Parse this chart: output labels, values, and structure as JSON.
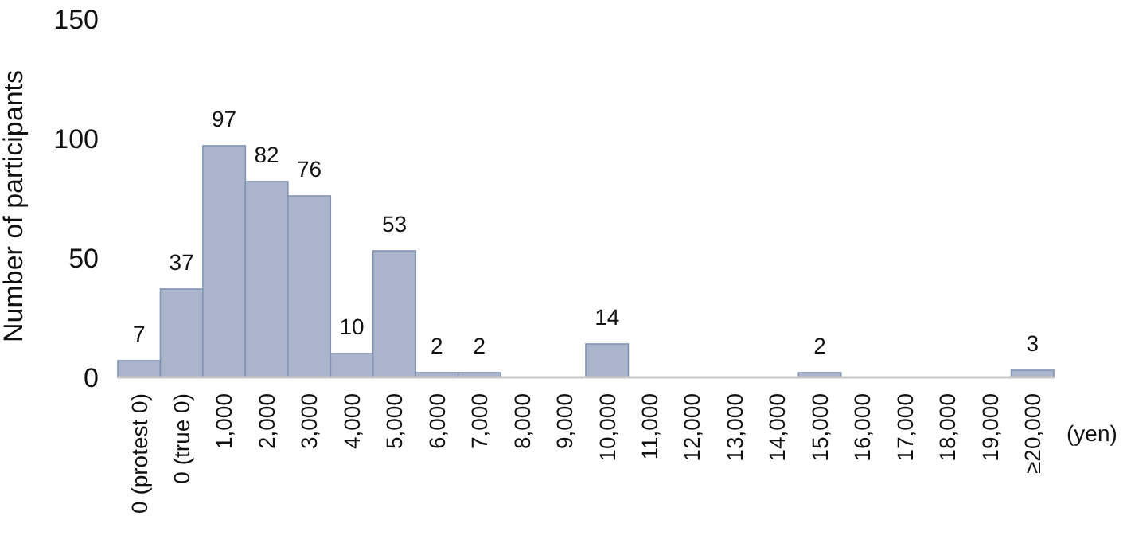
{
  "chart_data": {
    "type": "bar",
    "ylabel": "Number of participants",
    "categories": [
      "0 (protest 0)",
      "0 (true 0)",
      "1,000",
      "2,000",
      "3,000",
      "4,000",
      "5,000",
      "6,000",
      "7,000",
      "8,000",
      "9,000",
      "10,000",
      "11,000",
      "12,000",
      "13,000",
      "14,000",
      "15,000",
      "16,000",
      "17,000",
      "18,000",
      "19,000",
      "≥20,000"
    ],
    "values": [
      7,
      37,
      97,
      82,
      76,
      10,
      53,
      2,
      2,
      0,
      0,
      14,
      0,
      0,
      0,
      0,
      2,
      0,
      0,
      0,
      0,
      3
    ],
    "value_labels": [
      "7",
      "37",
      "97",
      "82",
      "76",
      "10",
      "53",
      "2",
      "2",
      null,
      null,
      "14",
      null,
      null,
      null,
      null,
      "2",
      null,
      null,
      null,
      null,
      "3"
    ],
    "color": "#aab5cb",
    "ylim": [
      0,
      150
    ],
    "yticks": [
      0,
      50,
      100,
      150
    ],
    "annotations": [
      "(yen)"
    ]
  }
}
